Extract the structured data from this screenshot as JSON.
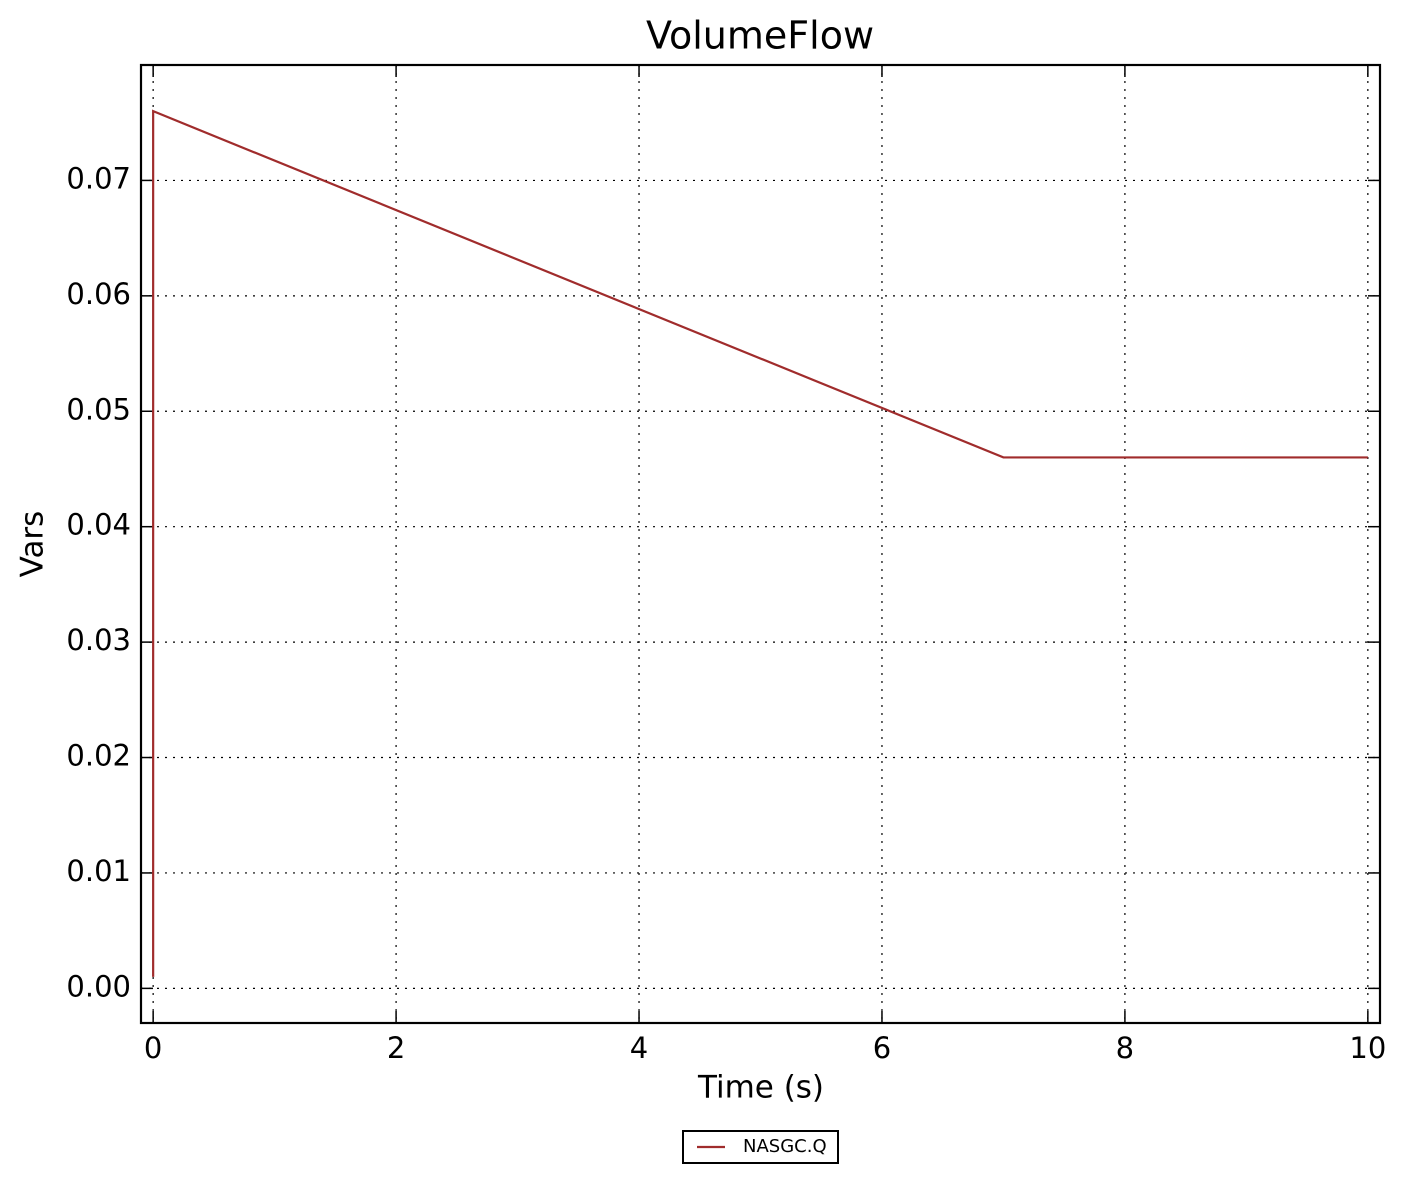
{
  "chart_data": {
    "type": "line",
    "title": "VolumeFlow",
    "xlabel": "Time (s)",
    "ylabel": "Vars",
    "x": [
      0,
      0,
      7,
      10
    ],
    "series": [
      {
        "name": "NASGC.Q",
        "color": "#a02c2c",
        "values": [
          0.001,
          0.076,
          0.046,
          0.046
        ]
      }
    ],
    "xlim": [
      -0.1,
      10.1
    ],
    "xticks": [
      0,
      2,
      4,
      6,
      8,
      10
    ],
    "ylim": [
      -0.003,
      0.08
    ],
    "yticks": [
      {
        "value": 0,
        "label": "0.00"
      },
      0.01,
      0.02,
      0.03,
      0.04,
      0.05,
      0.06,
      0.07
    ],
    "grid": true,
    "legend": "below"
  }
}
